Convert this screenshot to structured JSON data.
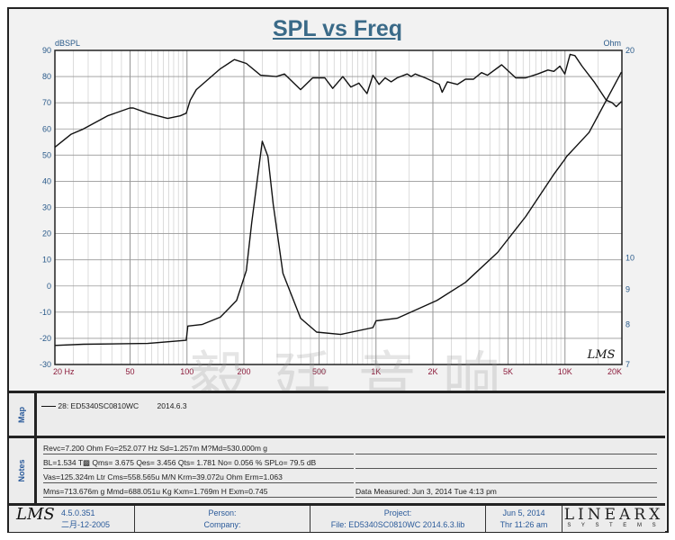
{
  "chart_data": {
    "type": "line",
    "title": "SPL vs Freq",
    "ylabel": "dBSPL",
    "y2label": "Ohm",
    "xlim": [
      20,
      20000
    ],
    "ylim": [
      -30,
      90
    ],
    "y2lim": [
      7,
      20
    ],
    "xscale": "log",
    "y2scale": "log",
    "x_ticks": [
      "20 Hz",
      "50",
      "100",
      "200",
      "500",
      "1K",
      "2K",
      "5K",
      "10K",
      "20K"
    ],
    "x_tick_values": [
      20,
      50,
      100,
      200,
      500,
      1000,
      2000,
      5000,
      10000,
      20000
    ],
    "y_ticks": [
      90,
      80,
      70,
      60,
      50,
      40,
      30,
      20,
      10,
      0,
      -10,
      -20,
      -30
    ],
    "y2_ticks": [
      20,
      10,
      9,
      8,
      7
    ],
    "grid": true,
    "series": [
      {
        "name": "SPL",
        "axis": "left",
        "points": [
          [
            20,
            53
          ],
          [
            24.4,
            58
          ],
          [
            28.3,
            60
          ],
          [
            38,
            65
          ],
          [
            49.8,
            68
          ],
          [
            52,
            68
          ],
          [
            62,
            66
          ],
          [
            79,
            64
          ],
          [
            92,
            65
          ],
          [
            99,
            66
          ],
          [
            104,
            71
          ],
          [
            112,
            75
          ],
          [
            150,
            83
          ],
          [
            178,
            86.5
          ],
          [
            206,
            85
          ],
          [
            245,
            80.5
          ],
          [
            297,
            80
          ],
          [
            328,
            81
          ],
          [
            399,
            75
          ],
          [
            462,
            79.5
          ],
          [
            536,
            79.5
          ],
          [
            590,
            75.5
          ],
          [
            667,
            80
          ],
          [
            736,
            76
          ],
          [
            812,
            77.5
          ],
          [
            896,
            73.5
          ],
          [
            964,
            80.5
          ],
          [
            1038,
            77
          ],
          [
            1117,
            79.5
          ],
          [
            1202,
            78
          ],
          [
            1294,
            79.5
          ],
          [
            1462,
            81
          ],
          [
            1535,
            80
          ],
          [
            1611,
            81
          ],
          [
            1823,
            79.5
          ],
          [
            2163,
            77
          ],
          [
            2239,
            74
          ],
          [
            2387,
            78
          ],
          [
            2697,
            77
          ],
          [
            2974,
            79
          ],
          [
            3281,
            79
          ],
          [
            3615,
            81.5
          ],
          [
            3891,
            80.5
          ],
          [
            4623,
            84.5
          ],
          [
            5483,
            79.5
          ],
          [
            6197,
            79.5
          ],
          [
            7178,
            81
          ],
          [
            8120,
            82.5
          ],
          [
            8730,
            82
          ],
          [
            9400,
            84
          ],
          [
            9980,
            81
          ],
          [
            10640,
            88.5
          ],
          [
            11280,
            88
          ],
          [
            12310,
            84
          ],
          [
            14260,
            78
          ],
          [
            16520,
            71
          ],
          [
            17780,
            70
          ],
          [
            18670,
            68.5
          ],
          [
            19900,
            70.5
          ]
        ]
      },
      {
        "name": "Impedance",
        "axis": "right",
        "points": [
          [
            20,
            7.46
          ],
          [
            28.3,
            7.49
          ],
          [
            62,
            7.51
          ],
          [
            99,
            7.59
          ],
          [
            101,
            7.96
          ],
          [
            120,
            8.0
          ],
          [
            150,
            8.2
          ],
          [
            183,
            8.67
          ],
          [
            206,
            9.58
          ],
          [
            220,
            11.25
          ],
          [
            250,
            14.76
          ],
          [
            268,
            14.03
          ],
          [
            286,
            11.95
          ],
          [
            322,
            9.49
          ],
          [
            399,
            8.17
          ],
          [
            485,
            7.8
          ],
          [
            650,
            7.74
          ],
          [
            964,
            7.92
          ],
          [
            1000,
            8.1
          ],
          [
            1294,
            8.17
          ],
          [
            2100,
            8.67
          ],
          [
            2970,
            9.21
          ],
          [
            4400,
            10.18
          ],
          [
            6200,
            11.48
          ],
          [
            8700,
            13.2
          ],
          [
            9980,
            13.9
          ],
          [
            10200,
            14.03
          ],
          [
            13400,
            15.2
          ],
          [
            19900,
            18.6
          ]
        ]
      }
    ],
    "logo_text": "LMS"
  },
  "map": {
    "label": "Map",
    "entry": "28: ED5340SC0810WC",
    "entry_date": "2014.6.3"
  },
  "notes": {
    "label": "Notes",
    "lines": [
      "Revc=7.200 Ohm  Fo=252.077 Hz  Sd=1.257m M?Md=530.000m g",
      "BL=1.534 T▩  Qms= 3.675  Qes= 3.456  Qts= 1.781  No= 0.056 %  SPLo= 79.5 dB",
      "Vas=125.324m Ltr  Cms=558.565u M/N  Krm=39.072u Ohm  Erm=1.063",
      "Mms=713.676m g  Mmd=688.051u Kg  Kxm=1.769m H  Exm=0.745"
    ],
    "right_lines": [
      "",
      "",
      "",
      "Data Measured: Jun  3, 2014  Tue  4:13 pm"
    ]
  },
  "footer": {
    "logo": "LMS",
    "version": "4.5.0.351",
    "build_date": "二月-12-2005",
    "person": "Person:",
    "company": "Company:",
    "project": "Project:",
    "file": "File: ED5340SC0810WC    2014.6.3.lib",
    "date": "Jun  5, 2014",
    "time": "Thr 11:26 am",
    "brand": "LINEARX",
    "brand_sub": "S Y S T E M S"
  },
  "watermark": "毅廷音响"
}
